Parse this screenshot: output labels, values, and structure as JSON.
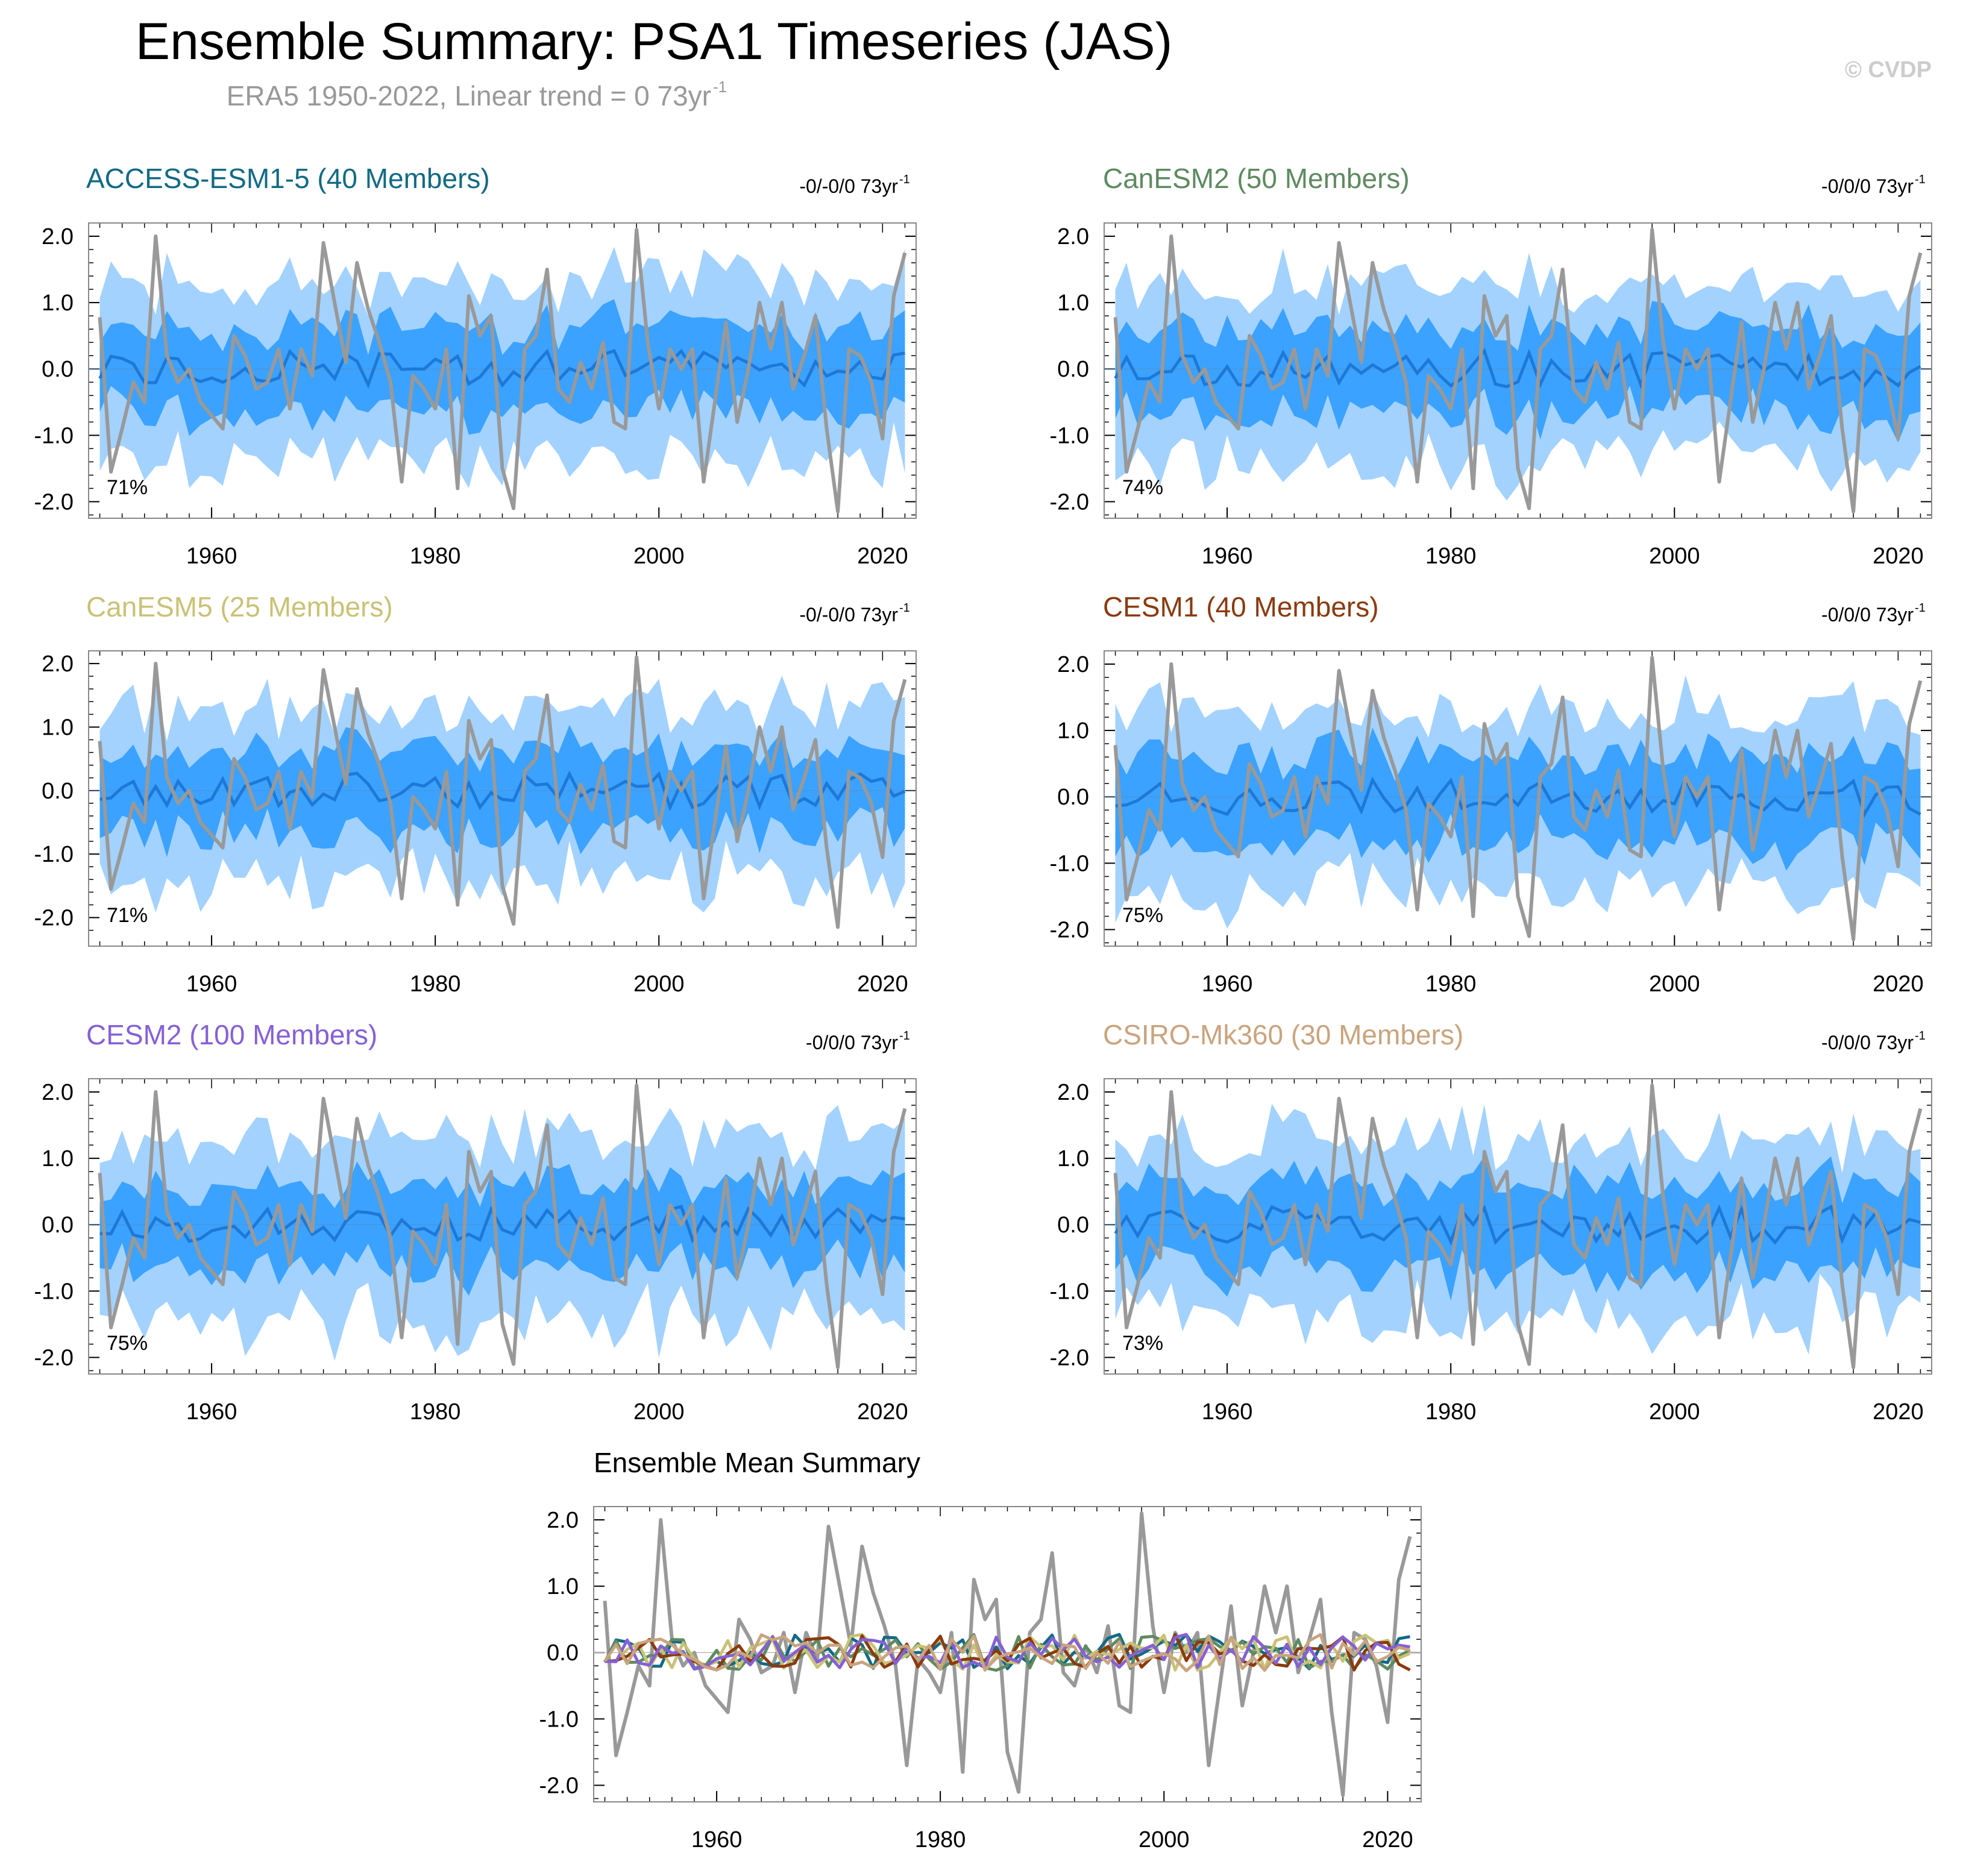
{
  "header": {
    "title": "Ensemble Summary: PSA1 Timeseries (JAS)",
    "subtitle_prefix": "ERA5 1950-2022, Linear trend = 0 73yr",
    "subtitle_exponent": "-1",
    "copyright": "© CVDP"
  },
  "colors": {
    "outer_band": "#a3d2ff",
    "inner_band": "#3ba2ff",
    "ensemble_mean": "#1e78d6",
    "observations": "#999999",
    "axis": "#000000"
  },
  "chart_data": [
    {
      "type": "area",
      "title": "ACCESS-ESM1-5 (40 Members)",
      "title_color": "#126a84",
      "trend_label": "-0/-0/0 73yr",
      "trend_exponent": "-1",
      "percent_label": "71%",
      "seed": 11,
      "xlim": [
        1949,
        2023
      ],
      "ylim": [
        -2.25,
        2.2
      ],
      "x_ticks": [
        1960,
        1980,
        2000,
        2020
      ],
      "y_ticks": [
        "2.0",
        "1.0",
        "0.0",
        "-1.0",
        "-2.0"
      ],
      "series": [
        "ensemble 10–90% range",
        "ensemble 25–75% range",
        "ensemble mean",
        "ERA5"
      ]
    },
    {
      "type": "area",
      "title": "CanESM2 (50 Members)",
      "title_color": "#5e8a60",
      "trend_label": "-0/0/0 73yr",
      "trend_exponent": "-1",
      "percent_label": "74%",
      "seed": 23,
      "xlim": [
        1949,
        2023
      ],
      "ylim": [
        -2.25,
        2.2
      ],
      "x_ticks": [
        1960,
        1980,
        2000,
        2020
      ],
      "y_ticks": [
        "2.0",
        "1.0",
        "0.0",
        "-1.0",
        "-2.0"
      ],
      "series": [
        "ensemble 10–90% range",
        "ensemble 25–75% range",
        "ensemble mean",
        "ERA5"
      ]
    },
    {
      "type": "area",
      "title": "CanESM5 (25 Members)",
      "title_color": "#c9c276",
      "trend_label": "-0/-0/0 73yr",
      "trend_exponent": "-1",
      "percent_label": "71%",
      "seed": 37,
      "xlim": [
        1949,
        2023
      ],
      "ylim": [
        -2.45,
        2.2
      ],
      "x_ticks": [
        1960,
        1980,
        2000,
        2020
      ],
      "y_ticks": [
        "2.0",
        "1.0",
        "0.0",
        "-1.0",
        "-2.0"
      ],
      "series": [
        "ensemble 10–90% range",
        "ensemble 25–75% range",
        "ensemble mean",
        "ERA5"
      ]
    },
    {
      "type": "area",
      "title": "CESM1 (40 Members)",
      "title_color": "#8a3a0e",
      "trend_label": "-0/0/0 73yr",
      "trend_exponent": "-1",
      "percent_label": "75%",
      "seed": 41,
      "xlim": [
        1949,
        2023
      ],
      "ylim": [
        -2.25,
        2.2
      ],
      "x_ticks": [
        1960,
        1980,
        2000,
        2020
      ],
      "y_ticks": [
        "2.0",
        "1.0",
        "0.0",
        "-1.0",
        "-2.0"
      ],
      "series": [
        "ensemble 10–90% range",
        "ensemble 25–75% range",
        "ensemble mean",
        "ERA5"
      ]
    },
    {
      "type": "area",
      "title": "CESM2 (100 Members)",
      "title_color": "#8560d6",
      "trend_label": "-0/0/0 73yr",
      "trend_exponent": "-1",
      "percent_label": "75%",
      "seed": 53,
      "xlim": [
        1949,
        2023
      ],
      "ylim": [
        -2.25,
        2.2
      ],
      "x_ticks": [
        1960,
        1980,
        2000,
        2020
      ],
      "y_ticks": [
        "2.0",
        "1.0",
        "0.0",
        "-1.0",
        "-2.0"
      ],
      "series": [
        "ensemble 10–90% range",
        "ensemble 25–75% range",
        "ensemble mean",
        "ERA5"
      ]
    },
    {
      "type": "area",
      "title": "CSIRO-Mk360 (30 Members)",
      "title_color": "#c9a47e",
      "trend_label": "-0/0/0 73yr",
      "trend_exponent": "-1",
      "percent_label": "73%",
      "seed": 67,
      "xlim": [
        1949,
        2023
      ],
      "ylim": [
        -2.25,
        2.2
      ],
      "x_ticks": [
        1960,
        1980,
        2000,
        2020
      ],
      "y_ticks": [
        "2.0",
        "1.0",
        "0.0",
        "-1.0",
        "-2.0"
      ],
      "series": [
        "ensemble 10–90% range",
        "ensemble 25–75% range",
        "ensemble mean",
        "ERA5"
      ]
    },
    {
      "type": "line",
      "title": "Ensemble Mean Summary",
      "xlim": [
        1949,
        2023
      ],
      "ylim": [
        -2.25,
        2.2
      ],
      "x_ticks": [
        1960,
        1980,
        2000,
        2020
      ],
      "y_ticks": [
        "2.0",
        "1.0",
        "0.0",
        "-1.0",
        "-2.0"
      ],
      "line_colors": [
        "#999999",
        "#126a84",
        "#5e8a60",
        "#c9c276",
        "#8a3a0e",
        "#8560d6",
        "#c9a47e"
      ]
    }
  ],
  "observations": {
    "start_year": 1950,
    "values": [
      0.78,
      -1.55,
      -0.9,
      -0.2,
      -0.5,
      2.0,
      0.2,
      -0.2,
      0.0,
      -0.5,
      -0.7,
      -0.9,
      0.5,
      0.2,
      -0.3,
      -0.2,
      0.3,
      -0.6,
      0.3,
      -0.1,
      1.9,
      1.0,
      0.1,
      1.6,
      0.9,
      0.4,
      -0.2,
      -1.7,
      -0.1,
      -0.3,
      -0.6,
      0.3,
      -1.8,
      1.1,
      0.5,
      0.8,
      -1.5,
      -2.1,
      0.3,
      0.5,
      1.5,
      -0.3,
      -0.5,
      0.1,
      -0.3,
      0.4,
      -0.8,
      -0.9,
      2.1,
      0.4,
      -0.6,
      0.3,
      0.0,
      0.3,
      -1.7,
      -0.5,
      0.7,
      -0.8,
      0.0,
      1.0,
      0.3,
      1.0,
      -0.3,
      0.2,
      0.8,
      -0.9,
      -2.15,
      0.3,
      0.2,
      -0.2,
      -1.05,
      1.1,
      1.75
    ]
  }
}
